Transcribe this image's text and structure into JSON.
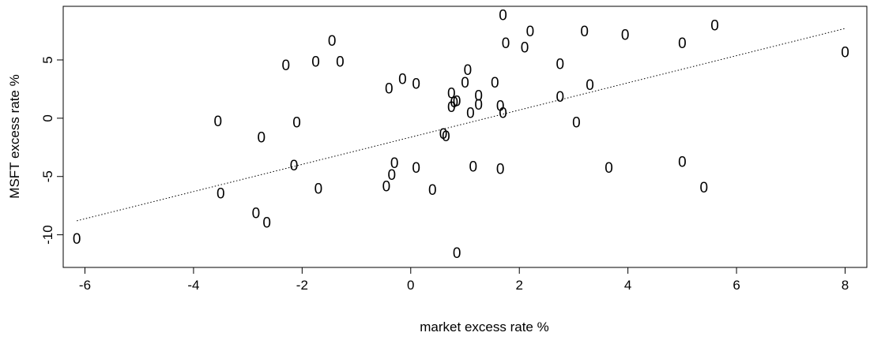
{
  "chart_data": {
    "type": "scatter",
    "title": "",
    "xlabel": "market excess rate %",
    "ylabel": "MSFT excess rate %",
    "xlim": [
      -6.4,
      8.4
    ],
    "ylim": [
      -12.8,
      9.6
    ],
    "xticks": [
      -6,
      -4,
      -2,
      0,
      2,
      4,
      6,
      8
    ],
    "yticks": [
      -10,
      -5,
      0,
      5
    ],
    "grid": false,
    "marker": "0",
    "points": [
      {
        "x": -6.15,
        "y": -10.4
      },
      {
        "x": -3.55,
        "y": -0.3
      },
      {
        "x": -3.5,
        "y": -6.5
      },
      {
        "x": -2.85,
        "y": -8.2
      },
      {
        "x": -2.75,
        "y": -1.7
      },
      {
        "x": -2.65,
        "y": -9.0
      },
      {
        "x": -2.3,
        "y": 4.5
      },
      {
        "x": -2.15,
        "y": -4.1
      },
      {
        "x": -2.1,
        "y": -0.4
      },
      {
        "x": -1.75,
        "y": 4.8
      },
      {
        "x": -1.7,
        "y": -6.1
      },
      {
        "x": -1.45,
        "y": 6.6
      },
      {
        "x": -1.3,
        "y": 4.8
      },
      {
        "x": -0.45,
        "y": -5.9
      },
      {
        "x": -0.4,
        "y": 2.5
      },
      {
        "x": -0.35,
        "y": -4.9
      },
      {
        "x": -0.3,
        "y": -3.9
      },
      {
        "x": -0.15,
        "y": 3.3
      },
      {
        "x": 0.1,
        "y": 2.9
      },
      {
        "x": 0.1,
        "y": -4.3
      },
      {
        "x": 0.4,
        "y": -6.2
      },
      {
        "x": 0.6,
        "y": -1.4
      },
      {
        "x": 0.65,
        "y": -1.6
      },
      {
        "x": 0.75,
        "y": 2.1
      },
      {
        "x": 0.75,
        "y": 0.9
      },
      {
        "x": 0.8,
        "y": 1.3
      },
      {
        "x": 0.85,
        "y": 1.4
      },
      {
        "x": 0.85,
        "y": -11.6
      },
      {
        "x": 1.0,
        "y": 3.0
      },
      {
        "x": 1.05,
        "y": 4.1
      },
      {
        "x": 1.1,
        "y": 0.4
      },
      {
        "x": 1.15,
        "y": -4.2
      },
      {
        "x": 1.25,
        "y": 1.9
      },
      {
        "x": 1.25,
        "y": 1.1
      },
      {
        "x": 1.55,
        "y": 3.0
      },
      {
        "x": 1.65,
        "y": 1.0
      },
      {
        "x": 1.65,
        "y": -4.4
      },
      {
        "x": 1.7,
        "y": 8.8
      },
      {
        "x": 1.7,
        "y": 0.4
      },
      {
        "x": 1.75,
        "y": 6.4
      },
      {
        "x": 2.1,
        "y": 6.0
      },
      {
        "x": 2.2,
        "y": 7.4
      },
      {
        "x": 2.75,
        "y": 4.6
      },
      {
        "x": 2.75,
        "y": 1.8
      },
      {
        "x": 3.05,
        "y": -0.4
      },
      {
        "x": 3.2,
        "y": 7.4
      },
      {
        "x": 3.3,
        "y": 2.8
      },
      {
        "x": 3.65,
        "y": -4.3
      },
      {
        "x": 3.95,
        "y": 7.1
      },
      {
        "x": 5.0,
        "y": 6.4
      },
      {
        "x": 5.0,
        "y": -3.8
      },
      {
        "x": 5.4,
        "y": -6.0
      },
      {
        "x": 5.6,
        "y": 7.9
      },
      {
        "x": 8.0,
        "y": 5.6
      }
    ],
    "fit_line": {
      "style": "dotted",
      "x": [
        -6.15,
        8.0
      ],
      "y": [
        -8.8,
        7.7
      ]
    }
  }
}
